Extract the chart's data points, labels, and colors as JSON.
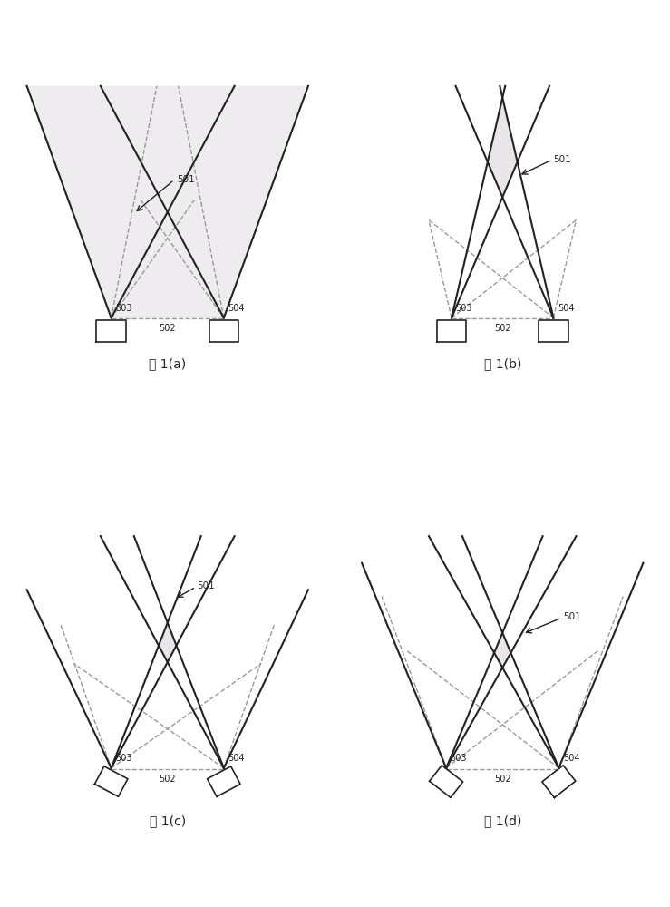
{
  "bg_color": "#ffffff",
  "line_color": "#222222",
  "dashed_color": "#999999",
  "fill_pink": "#e8d0e8",
  "fill_green": "#d0e8d0",
  "fill_alpha": 0.55,
  "captions": [
    "图 1(a)",
    "图 1(b)",
    "图 1(c)",
    "图 1(d)"
  ],
  "label_503": "503",
  "label_504": "504",
  "label_502": "502",
  "label_501": "501"
}
